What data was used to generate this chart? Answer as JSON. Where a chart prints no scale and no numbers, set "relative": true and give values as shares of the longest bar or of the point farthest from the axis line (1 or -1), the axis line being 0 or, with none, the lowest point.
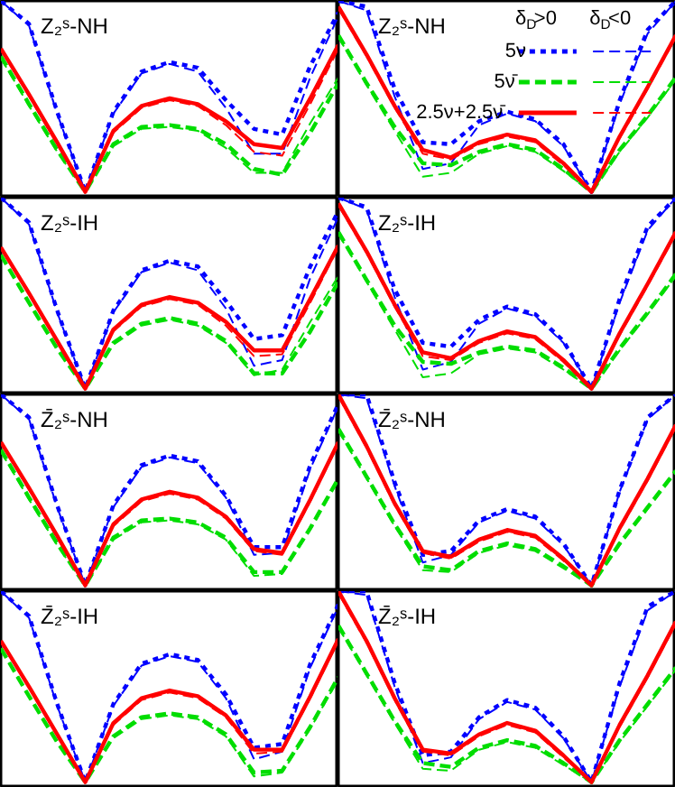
{
  "chart_data": [
    {
      "type": "line",
      "title": "Z₂ˢ-NH",
      "relative": true,
      "categories": [
        null,
        null,
        null,
        null,
        null,
        null,
        null,
        null,
        null,
        null,
        null,
        null,
        null
      ],
      "series": [
        {
          "color": "#0000ff",
          "line_style": "dotted",
          "values": [
            1.0,
            0.88,
            0.42,
            0,
            0.42,
            0.63,
            0.68,
            0.65,
            0.48,
            0.33,
            0.3,
            0.66,
            0.94
          ]
        },
        {
          "color": "#0000ff",
          "line_style": "dashed",
          "values": [
            1.0,
            0.87,
            0.41,
            0,
            0.41,
            0.62,
            0.67,
            0.63,
            0.44,
            0.2,
            0.2,
            0.6,
            0.92
          ]
        },
        {
          "color": "#00dd00",
          "line_style": "dashed",
          "values": [
            0.71,
            0.46,
            0.22,
            0,
            0.25,
            0.34,
            0.35,
            0.33,
            0.25,
            0.12,
            0.09,
            0.31,
            0.57
          ]
        },
        {
          "color": "#00dd00",
          "line_style": "dashed",
          "values": [
            0.7,
            0.45,
            0.21,
            0,
            0.24,
            0.33,
            0.34,
            0.32,
            0.23,
            0.1,
            0.1,
            0.36,
            0.6
          ]
        },
        {
          "color": "#ff0000",
          "line_style": "solid",
          "values": [
            0.75,
            0.51,
            0.26,
            0,
            0.32,
            0.45,
            0.49,
            0.46,
            0.37,
            0.25,
            0.23,
            0.49,
            0.77
          ]
        },
        {
          "color": "#ff0000",
          "line_style": "dashed",
          "values": [
            0.75,
            0.5,
            0.25,
            0,
            0.31,
            0.44,
            0.48,
            0.45,
            0.35,
            0.21,
            0.19,
            0.46,
            0.75
          ]
        }
      ]
    },
    {
      "type": "line",
      "title": "Z₂ˢ-NH",
      "relative": true,
      "legend": "top right",
      "annotations": [
        "δ$_{D}$>0",
        "δ$_{D}$<0"
      ],
      "categories": [
        null,
        null,
        null,
        null,
        null,
        null,
        null,
        null,
        null,
        null,
        null,
        null,
        null
      ],
      "series": [
        {
          "name": "5ν",
          "color": "#0000ff",
          "line_style": "dotted",
          "values": [
            1.0,
            0.97,
            0.54,
            0.26,
            0.25,
            0.37,
            0.42,
            0.38,
            0.25,
            0,
            0.48,
            0.85,
            1.0
          ]
        },
        {
          "color": "#0000ff",
          "line_style": "dashed",
          "values": [
            1.0,
            0.95,
            0.5,
            0.12,
            0.15,
            0.35,
            0.41,
            0.37,
            0.24,
            0,
            0.46,
            0.83,
            1.0
          ]
        },
        {
          "name": "5ν̄",
          "color": "#00dd00",
          "line_style": "dashed",
          "values": [
            0.82,
            0.57,
            0.34,
            0.15,
            0.14,
            0.21,
            0.25,
            0.22,
            0.12,
            0,
            0.22,
            0.4,
            0.6
          ]
        },
        {
          "color": "#00dd00",
          "line_style": "dashed",
          "values": [
            0.81,
            0.56,
            0.32,
            0.08,
            0.1,
            0.2,
            0.24,
            0.21,
            0.11,
            0,
            0.21,
            0.39,
            0.59
          ]
        },
        {
          "name": "2.5ν+2.5ν̄",
          "color": "#ff0000",
          "line_style": "solid",
          "values": [
            0.97,
            0.72,
            0.45,
            0.22,
            0.18,
            0.26,
            0.3,
            0.27,
            0.15,
            0,
            0.29,
            0.55,
            0.82
          ]
        },
        {
          "color": "#ff0000",
          "line_style": "dashed",
          "values": [
            0.96,
            0.71,
            0.44,
            0.2,
            0.17,
            0.25,
            0.29,
            0.26,
            0.14,
            0,
            0.28,
            0.54,
            0.81
          ]
        }
      ]
    },
    {
      "type": "line",
      "title": "Z₂ˢ-IH",
      "relative": true,
      "categories": [
        null,
        null,
        null,
        null,
        null,
        null,
        null,
        null,
        null,
        null,
        null,
        null,
        null
      ],
      "series": [
        {
          "color": "#0000ff",
          "line_style": "dotted",
          "values": [
            1.0,
            0.87,
            0.41,
            0,
            0.41,
            0.62,
            0.67,
            0.64,
            0.46,
            0.26,
            0.28,
            0.64,
            0.93
          ]
        },
        {
          "color": "#0000ff",
          "line_style": "dashed",
          "values": [
            1.0,
            0.86,
            0.4,
            0,
            0.4,
            0.61,
            0.66,
            0.62,
            0.42,
            0.12,
            0.15,
            0.58,
            0.9
          ]
        },
        {
          "color": "#00dd00",
          "line_style": "dashed",
          "values": [
            0.7,
            0.45,
            0.21,
            0,
            0.24,
            0.34,
            0.37,
            0.34,
            0.25,
            0.08,
            0.08,
            0.3,
            0.56
          ]
        },
        {
          "color": "#00dd00",
          "line_style": "dashed",
          "values": [
            0.7,
            0.45,
            0.21,
            0,
            0.23,
            0.33,
            0.36,
            0.33,
            0.24,
            0.07,
            0.1,
            0.35,
            0.59
          ]
        },
        {
          "color": "#ff0000",
          "line_style": "solid",
          "values": [
            0.74,
            0.5,
            0.25,
            0,
            0.31,
            0.44,
            0.48,
            0.45,
            0.35,
            0.2,
            0.2,
            0.47,
            0.75
          ]
        },
        {
          "color": "#ff0000",
          "line_style": "dashed",
          "values": [
            0.74,
            0.5,
            0.25,
            0,
            0.3,
            0.43,
            0.47,
            0.44,
            0.33,
            0.17,
            0.18,
            0.45,
            0.74
          ]
        }
      ]
    },
    {
      "type": "line",
      "title": "Z₂ˢ-IH",
      "relative": true,
      "categories": [
        null,
        null,
        null,
        null,
        null,
        null,
        null,
        null,
        null,
        null,
        null,
        null,
        null
      ],
      "series": [
        {
          "color": "#0000ff",
          "line_style": "dotted",
          "values": [
            1.0,
            0.95,
            0.52,
            0.24,
            0.22,
            0.36,
            0.43,
            0.39,
            0.25,
            0,
            0.47,
            0.85,
            1.0
          ]
        },
        {
          "color": "#0000ff",
          "line_style": "dashed",
          "values": [
            1.0,
            0.94,
            0.48,
            0.1,
            0.14,
            0.34,
            0.42,
            0.38,
            0.24,
            0,
            0.45,
            0.83,
            1.0
          ]
        },
        {
          "color": "#00dd00",
          "line_style": "dashed",
          "values": [
            0.82,
            0.57,
            0.33,
            0.14,
            0.13,
            0.19,
            0.22,
            0.2,
            0.11,
            0,
            0.21,
            0.4,
            0.6
          ]
        },
        {
          "color": "#00dd00",
          "line_style": "dashed",
          "values": [
            0.81,
            0.56,
            0.31,
            0.06,
            0.08,
            0.18,
            0.21,
            0.19,
            0.1,
            0,
            0.2,
            0.39,
            0.59
          ]
        },
        {
          "color": "#ff0000",
          "line_style": "solid",
          "values": [
            0.97,
            0.72,
            0.44,
            0.19,
            0.16,
            0.25,
            0.3,
            0.27,
            0.15,
            0,
            0.29,
            0.55,
            0.82
          ]
        },
        {
          "color": "#ff0000",
          "line_style": "dashed",
          "values": [
            0.96,
            0.71,
            0.43,
            0.17,
            0.15,
            0.24,
            0.29,
            0.26,
            0.14,
            0,
            0.28,
            0.54,
            0.81
          ]
        }
      ]
    },
    {
      "type": "line",
      "title": "Z̄₂ˢ-NH",
      "relative": true,
      "categories": [
        null,
        null,
        null,
        null,
        null,
        null,
        null,
        null,
        null,
        null,
        null,
        null,
        null
      ],
      "series": [
        {
          "color": "#0000ff",
          "line_style": "dotted",
          "values": [
            1.0,
            0.88,
            0.42,
            0,
            0.42,
            0.63,
            0.68,
            0.65,
            0.47,
            0.2,
            0.2,
            0.63,
            0.95
          ]
        },
        {
          "color": "#0000ff",
          "line_style": "dashed",
          "values": [
            1.0,
            0.87,
            0.41,
            0,
            0.41,
            0.62,
            0.67,
            0.64,
            0.46,
            0.16,
            0.17,
            0.61,
            0.94
          ]
        },
        {
          "color": "#00dd00",
          "line_style": "dashed",
          "values": [
            0.71,
            0.46,
            0.22,
            0,
            0.25,
            0.34,
            0.35,
            0.33,
            0.25,
            0.07,
            0.07,
            0.3,
            0.56
          ]
        },
        {
          "color": "#00dd00",
          "line_style": "dashed",
          "values": [
            0.7,
            0.45,
            0.21,
            0,
            0.24,
            0.33,
            0.34,
            0.32,
            0.24,
            0.05,
            0.06,
            0.29,
            0.55
          ]
        },
        {
          "color": "#ff0000",
          "line_style": "solid",
          "values": [
            0.75,
            0.51,
            0.26,
            0,
            0.32,
            0.45,
            0.49,
            0.46,
            0.36,
            0.19,
            0.17,
            0.45,
            0.75
          ]
        },
        {
          "color": "#ff0000",
          "line_style": "dashed",
          "values": [
            0.75,
            0.5,
            0.25,
            0,
            0.31,
            0.44,
            0.48,
            0.45,
            0.35,
            0.18,
            0.16,
            0.44,
            0.74
          ]
        }
      ]
    },
    {
      "type": "line",
      "title": "Z̄₂ˢ-NH",
      "relative": true,
      "categories": [
        null,
        null,
        null,
        null,
        null,
        null,
        null,
        null,
        null,
        null,
        null,
        null,
        null
      ],
      "series": [
        {
          "color": "#0000ff",
          "line_style": "dotted",
          "values": [
            1.0,
            1.0,
            0.54,
            0.16,
            0.18,
            0.34,
            0.4,
            0.36,
            0.22,
            0,
            0.5,
            0.88,
            1.0
          ]
        },
        {
          "color": "#0000ff",
          "line_style": "dashed",
          "values": [
            1.0,
            0.98,
            0.52,
            0.12,
            0.16,
            0.33,
            0.39,
            0.35,
            0.21,
            0,
            0.49,
            0.87,
            1.0
          ]
        },
        {
          "color": "#00dd00",
          "line_style": "dashed",
          "values": [
            0.82,
            0.57,
            0.32,
            0.1,
            0.08,
            0.18,
            0.22,
            0.19,
            0.1,
            0,
            0.22,
            0.41,
            0.6
          ]
        },
        {
          "color": "#00dd00",
          "line_style": "dashed",
          "values": [
            0.81,
            0.56,
            0.31,
            0.08,
            0.07,
            0.17,
            0.21,
            0.18,
            0.09,
            0,
            0.21,
            0.4,
            0.59
          ]
        },
        {
          "color": "#ff0000",
          "line_style": "solid",
          "values": [
            1.0,
            0.73,
            0.43,
            0.18,
            0.15,
            0.24,
            0.29,
            0.26,
            0.14,
            0,
            0.3,
            0.56,
            0.84
          ]
        },
        {
          "color": "#ff0000",
          "line_style": "dashed",
          "values": [
            0.99,
            0.72,
            0.42,
            0.17,
            0.14,
            0.23,
            0.28,
            0.25,
            0.13,
            0,
            0.29,
            0.55,
            0.83
          ]
        }
      ]
    },
    {
      "type": "line",
      "title": "Z̄₂ˢ-IH",
      "relative": true,
      "categories": [
        null,
        null,
        null,
        null,
        null,
        null,
        null,
        null,
        null,
        null,
        null,
        null,
        null
      ],
      "series": [
        {
          "color": "#0000ff",
          "line_style": "dotted",
          "values": [
            1.0,
            0.87,
            0.41,
            0,
            0.41,
            0.62,
            0.67,
            0.64,
            0.46,
            0.18,
            0.2,
            0.62,
            0.93
          ]
        },
        {
          "color": "#0000ff",
          "line_style": "dashed",
          "values": [
            1.0,
            0.86,
            0.4,
            0,
            0.4,
            0.61,
            0.66,
            0.63,
            0.44,
            0.12,
            0.16,
            0.6,
            0.92
          ]
        },
        {
          "color": "#00dd00",
          "line_style": "dashed",
          "values": [
            0.7,
            0.45,
            0.21,
            0,
            0.24,
            0.34,
            0.36,
            0.34,
            0.25,
            0.05,
            0.06,
            0.29,
            0.55
          ]
        },
        {
          "color": "#00dd00",
          "line_style": "dashed",
          "values": [
            0.7,
            0.45,
            0.21,
            0,
            0.23,
            0.33,
            0.35,
            0.33,
            0.24,
            0.03,
            0.05,
            0.28,
            0.54
          ]
        },
        {
          "color": "#ff0000",
          "line_style": "solid",
          "values": [
            0.74,
            0.5,
            0.25,
            0,
            0.31,
            0.44,
            0.48,
            0.45,
            0.35,
            0.17,
            0.17,
            0.45,
            0.75
          ]
        },
        {
          "color": "#ff0000",
          "line_style": "dashed",
          "values": [
            0.74,
            0.5,
            0.25,
            0,
            0.3,
            0.43,
            0.47,
            0.44,
            0.34,
            0.15,
            0.16,
            0.44,
            0.74
          ]
        }
      ]
    },
    {
      "type": "line",
      "title": "Z̄₂ˢ-IH",
      "relative": true,
      "categories": [
        null,
        null,
        null,
        null,
        null,
        null,
        null,
        null,
        null,
        null,
        null,
        null,
        null
      ],
      "series": [
        {
          "color": "#0000ff",
          "line_style": "dotted",
          "values": [
            1.0,
            1.0,
            0.52,
            0.14,
            0.16,
            0.34,
            0.43,
            0.39,
            0.24,
            0,
            0.52,
            0.92,
            1.0
          ]
        },
        {
          "color": "#0000ff",
          "line_style": "dashed",
          "values": [
            1.0,
            0.98,
            0.5,
            0.1,
            0.13,
            0.33,
            0.42,
            0.38,
            0.23,
            0,
            0.5,
            0.9,
            1.0
          ]
        },
        {
          "color": "#00dd00",
          "line_style": "dashed",
          "values": [
            0.82,
            0.57,
            0.32,
            0.1,
            0.08,
            0.18,
            0.22,
            0.19,
            0.1,
            0,
            0.22,
            0.41,
            0.6
          ]
        },
        {
          "color": "#00dd00",
          "line_style": "dashed",
          "values": [
            0.81,
            0.56,
            0.31,
            0.07,
            0.06,
            0.17,
            0.21,
            0.18,
            0.09,
            0,
            0.21,
            0.4,
            0.59
          ]
        },
        {
          "color": "#ff0000",
          "line_style": "solid",
          "values": [
            1.0,
            0.74,
            0.44,
            0.17,
            0.15,
            0.25,
            0.31,
            0.27,
            0.14,
            0,
            0.3,
            0.56,
            0.84
          ]
        },
        {
          "color": "#ff0000",
          "line_style": "dashed",
          "values": [
            0.99,
            0.73,
            0.43,
            0.16,
            0.14,
            0.24,
            0.3,
            0.26,
            0.13,
            0,
            0.29,
            0.55,
            0.83
          ]
        }
      ]
    }
  ]
}
